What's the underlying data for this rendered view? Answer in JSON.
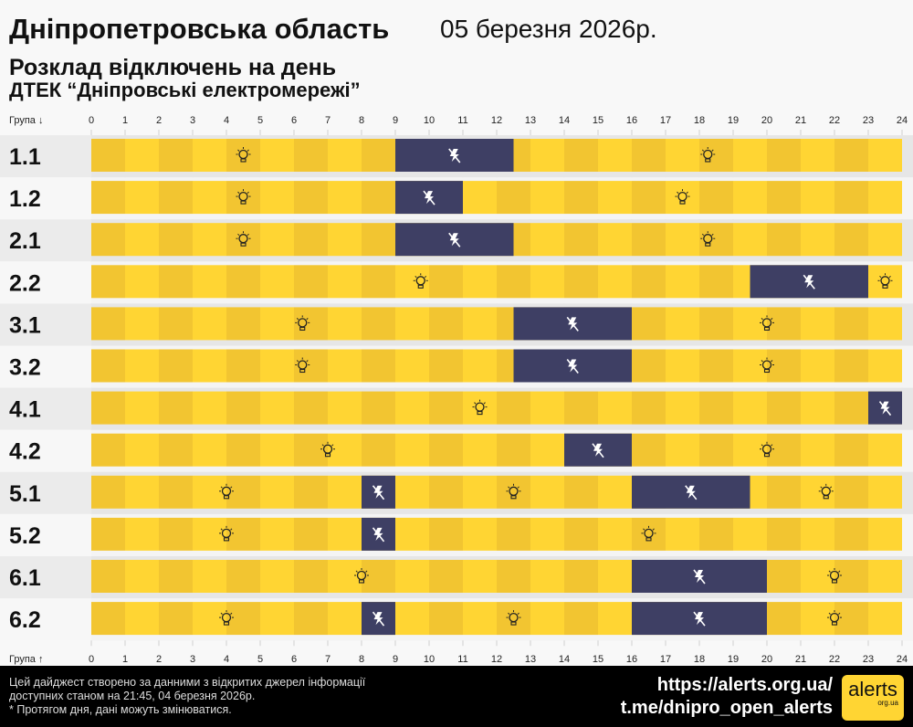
{
  "header": {
    "title": "Дніпропетровська область",
    "date": "05 березня 2026р.",
    "subtitle": "Розклад відключень на день",
    "provider": "ДТЕК “Дніпровські електромережі”"
  },
  "chart_data": {
    "type": "timeline",
    "xlabel_top": "Група ↓",
    "xlabel_bottom": "Група ↑",
    "xlim": [
      0,
      24
    ],
    "ticks": [
      "0",
      "1",
      "2",
      "3",
      "4",
      "5",
      "6",
      "7",
      "8",
      "9",
      "10",
      "11",
      "12",
      "13",
      "14",
      "15",
      "16",
      "17",
      "18",
      "19",
      "20",
      "21",
      "22",
      "23",
      "24"
    ],
    "colors": {
      "power_on": "#FFD533",
      "power_on_alt": "#F2C531",
      "power_off": "#3E3F64"
    },
    "groups": [
      {
        "name": "1.1",
        "outages": [
          [
            9,
            12.5
          ]
        ]
      },
      {
        "name": "1.2",
        "outages": [
          [
            9,
            11
          ]
        ]
      },
      {
        "name": "2.1",
        "outages": [
          [
            9,
            12.5
          ]
        ]
      },
      {
        "name": "2.2",
        "outages": [
          [
            19.5,
            23
          ]
        ]
      },
      {
        "name": "3.1",
        "outages": [
          [
            12.5,
            16
          ]
        ]
      },
      {
        "name": "3.2",
        "outages": [
          [
            12.5,
            16
          ]
        ]
      },
      {
        "name": "4.1",
        "outages": [
          [
            23,
            24
          ]
        ]
      },
      {
        "name": "4.2",
        "outages": [
          [
            14,
            16
          ]
        ]
      },
      {
        "name": "5.1",
        "outages": [
          [
            8,
            9
          ],
          [
            16,
            19.5
          ]
        ]
      },
      {
        "name": "5.2",
        "outages": [
          [
            8,
            9
          ]
        ]
      },
      {
        "name": "6.1",
        "outages": [
          [
            16,
            20
          ]
        ]
      },
      {
        "name": "6.2",
        "outages": [
          [
            8,
            9
          ],
          [
            16,
            20
          ]
        ]
      }
    ]
  },
  "footer": {
    "note1": "Цей дайджест створено за данними з відкритих джерел інформації",
    "note2": "доступних станом на 21:45, 04 березня 2026р.",
    "note3": "* Протягом дня, дані можуть змінюватися.",
    "url": "https://alerts.org.ua/",
    "telegram": "t.me/dnipro_open_alerts",
    "logo_text": "alerts",
    "logo_sub": "org.ua"
  }
}
